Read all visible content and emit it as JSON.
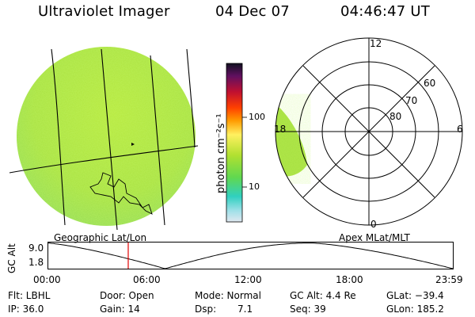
{
  "header": {
    "instrument": "Ultraviolet Imager",
    "date": "04 Dec 07",
    "time": "04:46:47 UT"
  },
  "colorbar": {
    "unit_label": "photon cm⁻²s⁻¹",
    "tick_100": "100",
    "tick_10": "10"
  },
  "polar": {
    "labels": {
      "noon": "12",
      "dusk": "18",
      "dawn": "6",
      "midnight": "0"
    },
    "lat_labels": [
      "60",
      "70",
      "80"
    ]
  },
  "captions": {
    "left_map": "Geographic Lat/Lon",
    "right_map": "Apex MLat/MLT"
  },
  "altitude_plot": {
    "axis_title": "GC Alt",
    "y_max": "9.0",
    "y_min": "1.8",
    "x_ticks": [
      "00:00",
      "06:00",
      "12:00",
      "18:00",
      "23:59"
    ],
    "cursor_time_hours": 4.78,
    "cursor_color": "#e00000"
  },
  "info": {
    "filter": "Flt: LBHL",
    "door": "Door: Open",
    "mode": "Mode: Normal",
    "gc_alt": "GC Alt: 4.4 Re",
    "glat": "GLat: −39.4",
    "ip": "IP: 36.0",
    "gain": "Gain: 14",
    "dsp_label": "Dsp:",
    "dsp_value": "7.1",
    "seq": "Seq: 39",
    "glon": "GLon: 185.2"
  }
}
